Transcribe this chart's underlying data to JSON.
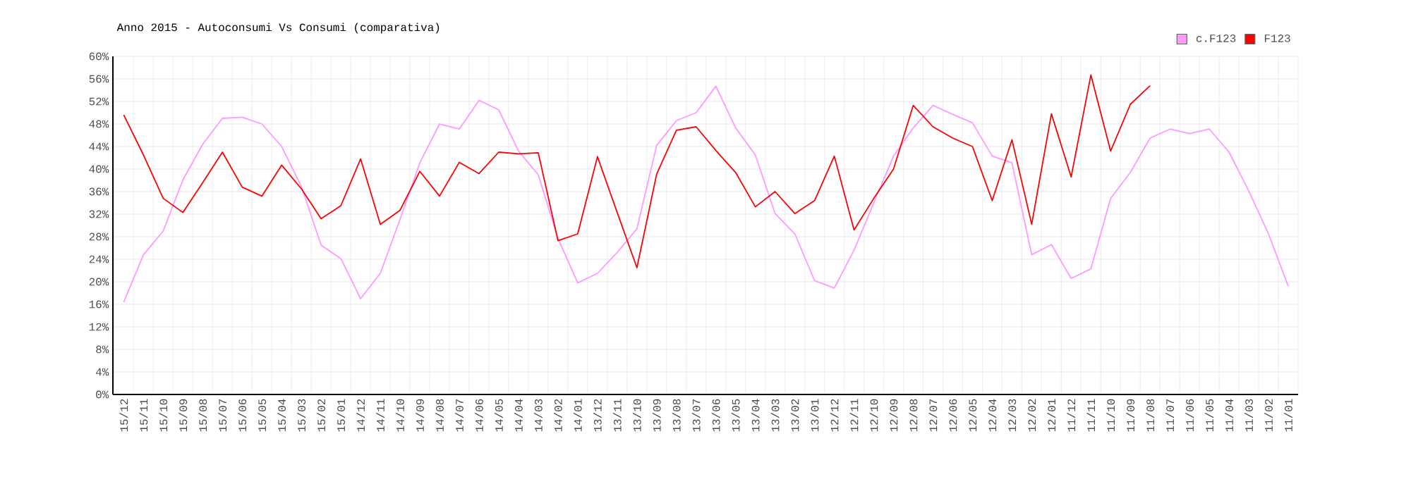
{
  "chart_data": {
    "type": "line",
    "title": "Anno 2015 - Autoconsumi Vs Consumi (comparativa)",
    "categories": [
      "15/12",
      "15/11",
      "15/10",
      "15/09",
      "15/08",
      "15/07",
      "15/06",
      "15/05",
      "15/04",
      "15/03",
      "15/02",
      "15/01",
      "14/12",
      "14/11",
      "14/10",
      "14/09",
      "14/08",
      "14/07",
      "14/06",
      "14/05",
      "14/04",
      "14/03",
      "14/02",
      "14/01",
      "13/12",
      "13/11",
      "13/10",
      "13/09",
      "13/08",
      "13/07",
      "13/06",
      "13/05",
      "13/04",
      "13/03",
      "13/02",
      "13/01",
      "12/12",
      "12/11",
      "12/10",
      "12/09",
      "12/08",
      "12/07",
      "12/06",
      "12/05",
      "12/04",
      "12/03",
      "12/02",
      "12/01",
      "11/12",
      "11/11",
      "11/10",
      "11/09",
      "11/08",
      "11/07",
      "11/06",
      "11/05",
      "11/04",
      "11/03",
      "11/02",
      "11/01"
    ],
    "series": [
      {
        "name": "c.F123",
        "color": "#ff99ff",
        "values": [
          16.4,
          24.8,
          29.0,
          38.1,
          44.4,
          49.0,
          49.2,
          48.0,
          44.0,
          36.9,
          26.5,
          24.1,
          17.0,
          21.5,
          31.1,
          41.1,
          48.0,
          47.1,
          52.2,
          50.5,
          43.2,
          39.0,
          27.7,
          19.8,
          21.5,
          25.2,
          29.4,
          44.2,
          48.6,
          50.0,
          54.7,
          47.3,
          42.5,
          32.1,
          28.5,
          20.2,
          18.9,
          25.6,
          34.0,
          42.3,
          47.3,
          51.3,
          49.7,
          48.2,
          42.3,
          41.1,
          24.8,
          26.6,
          20.6,
          22.3,
          34.8,
          39.4,
          45.5,
          47.1,
          46.3,
          47.1,
          43.0,
          36.1,
          28.5,
          19.2
        ]
      },
      {
        "name": "F123",
        "color": "#ff0000",
        "values": [
          49.6,
          42.5,
          34.8,
          32.3,
          37.6,
          43.0,
          36.8,
          35.2,
          40.7,
          36.5,
          31.2,
          33.5,
          41.8,
          30.2,
          32.7,
          39.6,
          35.2,
          41.2,
          39.2,
          43.0,
          42.7,
          42.9,
          27.3,
          28.5,
          42.2,
          32.3,
          22.5,
          39.1,
          46.9,
          47.5,
          43.3,
          39.4,
          33.3,
          36.0,
          32.1,
          34.4,
          42.3,
          29.2,
          34.8,
          40.0,
          51.3,
          47.5,
          45.5,
          44.0,
          34.4,
          45.2,
          30.2,
          49.8,
          38.6,
          56.7,
          43.2,
          51.5,
          54.8,
          null,
          null,
          null,
          null,
          null,
          null,
          null
        ]
      }
    ],
    "ylim": [
      0,
      60
    ],
    "yticks": [
      {
        "value": 0,
        "label": "0%"
      },
      {
        "value": 4,
        "label": "4%"
      },
      {
        "value": 8,
        "label": "8%"
      },
      {
        "value": 12,
        "label": "12%"
      },
      {
        "value": 16,
        "label": "16%"
      },
      {
        "value": 20,
        "label": "20%"
      },
      {
        "value": 24,
        "label": "24%"
      },
      {
        "value": 28,
        "label": "28%"
      },
      {
        "value": 32,
        "label": "32%"
      },
      {
        "value": 36,
        "label": "36%"
      },
      {
        "value": 40,
        "label": "40%"
      },
      {
        "value": 44,
        "label": "44%"
      },
      {
        "value": 48,
        "label": "48%"
      },
      {
        "value": 52,
        "label": "52%"
      },
      {
        "value": 56,
        "label": "56%"
      },
      {
        "value": 60,
        "label": "60%"
      }
    ],
    "grid": true,
    "legend": "top right",
    "marker": "none",
    "line_style": "solid"
  }
}
